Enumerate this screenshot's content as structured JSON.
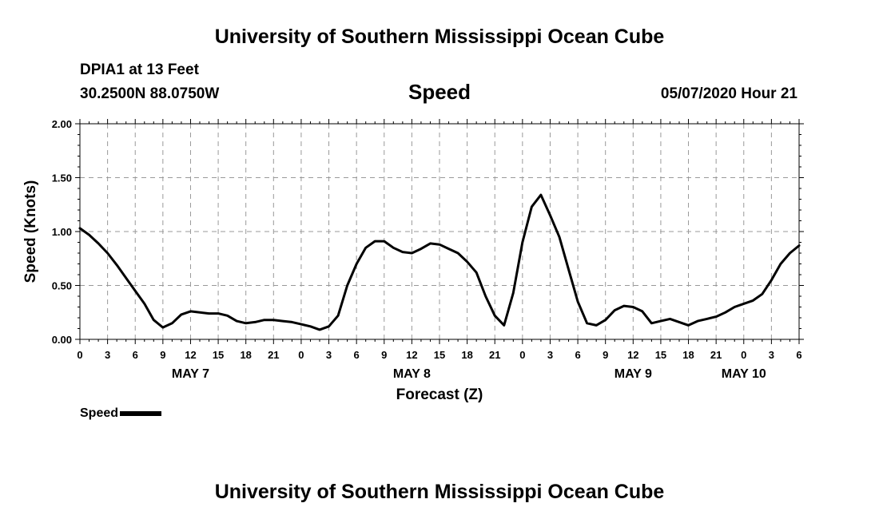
{
  "header": {
    "title_top": "University of Southern Mississippi Ocean Cube",
    "station": "DPIA1 at 13 Feet",
    "location": "30.2500N 88.0750W",
    "variable": "Speed",
    "issued": "05/07/2020 Hour 21"
  },
  "footer": {
    "title_bottom": "University of Southern Mississippi Ocean Cube"
  },
  "legend": {
    "label": "Speed",
    "color": "#000000"
  },
  "chart_data": {
    "type": "line",
    "title": "Speed",
    "xlabel": "Forecast (Z)",
    "ylabel": "Speed (Knots)",
    "ylim": [
      0,
      2
    ],
    "xlim": [
      0,
      78
    ],
    "grid": true,
    "legend_position": "bottom-left",
    "y_ticks": [
      "0.00",
      "0.50",
      "1.00",
      "1.50",
      "2.00"
    ],
    "x_tick_labels": [
      "0",
      "3",
      "6",
      "9",
      "12",
      "15",
      "18",
      "21",
      "0",
      "3",
      "6",
      "9",
      "12",
      "15",
      "18",
      "21",
      "0",
      "3",
      "6",
      "9",
      "12",
      "15",
      "18",
      "21",
      "0",
      "3",
      "6"
    ],
    "date_labels": [
      {
        "text": "MAY 7",
        "hour": 12
      },
      {
        "text": "MAY 8",
        "hour": 36
      },
      {
        "text": "MAY 9",
        "hour": 60
      },
      {
        "text": "MAY 10",
        "hour": 72
      }
    ],
    "series": [
      {
        "name": "Speed",
        "color": "#000000",
        "x": [
          0,
          1,
          2,
          3,
          4,
          5,
          6,
          7,
          8,
          9,
          10,
          11,
          12,
          13,
          14,
          15,
          16,
          17,
          18,
          19,
          20,
          21,
          22,
          23,
          24,
          25,
          26,
          27,
          28,
          29,
          30,
          31,
          32,
          33,
          34,
          35,
          36,
          37,
          38,
          39,
          40,
          41,
          42,
          43,
          44,
          45,
          46,
          47,
          48,
          49,
          50,
          51,
          52,
          53,
          54,
          55,
          56,
          57,
          58,
          59,
          60,
          61,
          62,
          63,
          64,
          65,
          66,
          67,
          68,
          69,
          70,
          71,
          72,
          73,
          74,
          75,
          76,
          77,
          78
        ],
        "y": [
          1.03,
          0.97,
          0.89,
          0.8,
          0.69,
          0.57,
          0.45,
          0.33,
          0.18,
          0.11,
          0.15,
          0.23,
          0.26,
          0.25,
          0.24,
          0.24,
          0.22,
          0.17,
          0.15,
          0.16,
          0.18,
          0.18,
          0.17,
          0.16,
          0.14,
          0.12,
          0.09,
          0.12,
          0.22,
          0.5,
          0.7,
          0.85,
          0.91,
          0.91,
          0.85,
          0.81,
          0.8,
          0.84,
          0.89,
          0.88,
          0.84,
          0.8,
          0.72,
          0.62,
          0.4,
          0.22,
          0.13,
          0.43,
          0.9,
          1.23,
          1.34,
          1.15,
          0.95,
          0.65,
          0.35,
          0.15,
          0.13,
          0.18,
          0.27,
          0.31,
          0.3,
          0.26,
          0.15,
          0.17,
          0.19,
          0.16,
          0.13,
          0.17,
          0.19,
          0.21,
          0.25,
          0.3,
          0.33,
          0.36,
          0.42,
          0.55,
          0.7,
          0.8,
          0.87
        ]
      }
    ]
  }
}
